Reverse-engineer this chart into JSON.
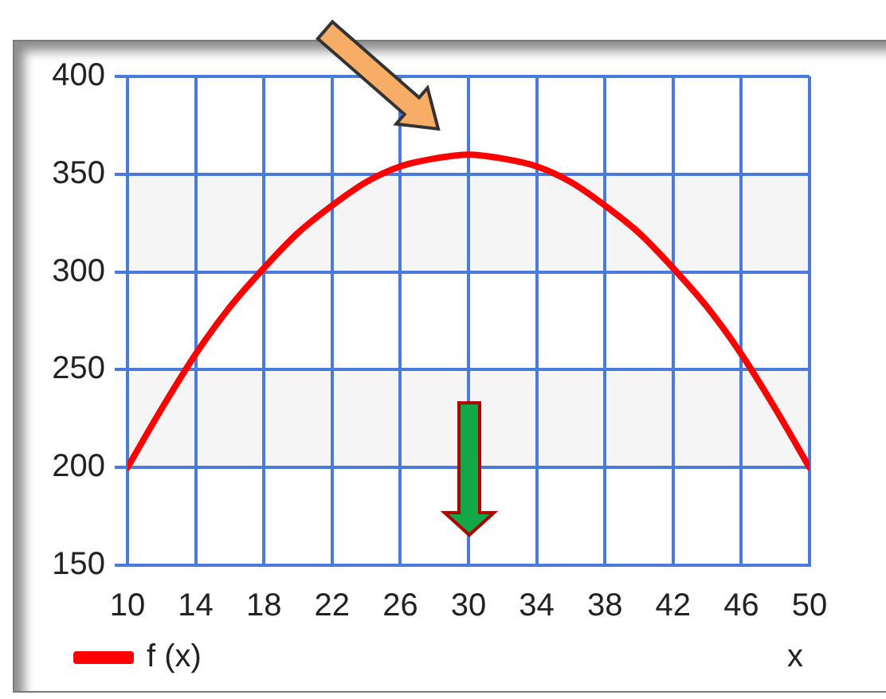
{
  "chart_data": {
    "type": "line",
    "xlabel": "x",
    "x": [
      10,
      12,
      14,
      16,
      18,
      20,
      22,
      24,
      26,
      28,
      30,
      32,
      34,
      36,
      38,
      40,
      42,
      44,
      46,
      48,
      50
    ],
    "series": [
      {
        "name": "f (x)",
        "color": "#ff0000",
        "values": [
          200,
          230,
          258,
          282,
          302,
          320,
          334,
          346,
          354,
          358,
          360,
          358,
          354,
          346,
          334,
          320,
          302,
          282,
          258,
          230,
          200
        ]
      }
    ],
    "xlim": [
      10,
      50
    ],
    "ylim": [
      150,
      400
    ],
    "xticks": [
      10,
      14,
      18,
      22,
      26,
      30,
      34,
      38,
      42,
      46,
      50
    ],
    "yticks": [
      150,
      200,
      250,
      300,
      350,
      400
    ],
    "grid": true,
    "legend": "bottom left",
    "marker": "none",
    "line_style": "solid",
    "bands": [
      {
        "axis": "y",
        "from": 200,
        "to": 250,
        "color": "#f5f5f5"
      },
      {
        "axis": "y",
        "from": 300,
        "to": 350,
        "color": "#f5f5f5"
      }
    ]
  }
}
